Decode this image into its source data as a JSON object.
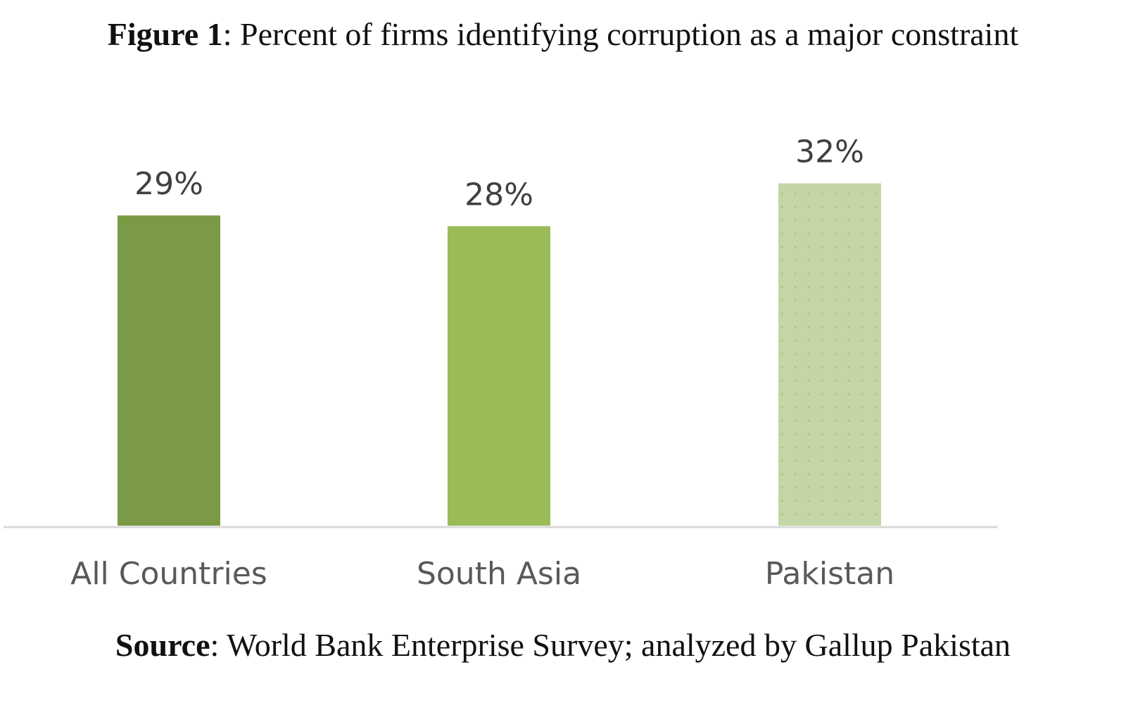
{
  "figure": {
    "title_label": "Figure 1",
    "title_text": ": Percent of firms identifying corruption as a major constraint",
    "source_label": "Source",
    "source_text": ": World Bank Enterprise Survey; analyzed by Gallup Pakistan"
  },
  "chart_data": {
    "type": "bar",
    "title": "Percent of firms identifying corruption as a major constraint",
    "categories": [
      "All Countries",
      "South Asia",
      "Pakistan"
    ],
    "values": [
      29,
      28,
      32
    ],
    "value_labels": [
      "29%",
      "28%",
      "32%"
    ],
    "xlabel": "",
    "ylabel": "",
    "grid": false,
    "legend": "none",
    "bar_colors": [
      "#7a9a45",
      "#9bbb59",
      "#c4d6a6"
    ],
    "pattern_overlay": [
      "none",
      "none",
      "dotted"
    ]
  }
}
